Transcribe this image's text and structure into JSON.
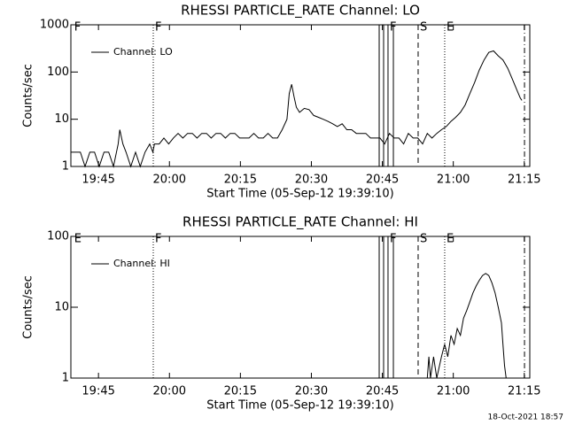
{
  "chart_data": [
    {
      "type": "line",
      "title": "RHESSI PARTICLE_RATE Channel: LO",
      "xlabel": "Start Time (05-Sep-12 19:39:10)",
      "ylabel": "Counts/sec",
      "log_y": true,
      "legend": "upper left",
      "xlim": [
        0,
        5820
      ],
      "ylim": [
        1,
        1000
      ],
      "xticks": [
        {
          "value": 350,
          "label": "19:45"
        },
        {
          "value": 1250,
          "label": "20:00"
        },
        {
          "value": 2150,
          "label": "20:15"
        },
        {
          "value": 3050,
          "label": "20:30"
        },
        {
          "value": 3950,
          "label": "20:45"
        },
        {
          "value": 4850,
          "label": "21:00"
        },
        {
          "value": 5750,
          "label": "21:15"
        }
      ],
      "yticks": [
        1,
        10,
        100,
        1000
      ],
      "vlines": [
        {
          "x": 1045,
          "style": "dotted"
        },
        {
          "x": 3910,
          "style": "solid"
        },
        {
          "x": 3966,
          "style": "solid"
        },
        {
          "x": 4022,
          "style": "solid"
        },
        {
          "x": 4090,
          "style": "solid"
        },
        {
          "x": 4404,
          "style": "dashed"
        },
        {
          "x": 4741,
          "style": "dotted"
        },
        {
          "x": 5753,
          "style": "dashdot"
        }
      ],
      "vline_labels": [
        {
          "x": 20,
          "label": "F"
        },
        {
          "x": 1045,
          "label": "F"
        },
        {
          "x": 4022,
          "label": "F"
        },
        {
          "x": 4404,
          "label": "S"
        },
        {
          "x": 4741,
          "label": "E"
        }
      ],
      "series": [
        {
          "name": "Channel: LO",
          "color": "#000000",
          "x": [
            0,
            60,
            120,
            180,
            240,
            300,
            360,
            420,
            480,
            540,
            600,
            620,
            660,
            700,
            760,
            820,
            880,
            940,
            1000,
            1040,
            1060,
            1120,
            1180,
            1240,
            1300,
            1360,
            1420,
            1480,
            1540,
            1600,
            1660,
            1720,
            1780,
            1840,
            1900,
            1960,
            2020,
            2080,
            2140,
            2200,
            2260,
            2320,
            2380,
            2440,
            2500,
            2560,
            2620,
            2680,
            2740,
            2770,
            2800,
            2830,
            2860,
            2900,
            2960,
            3020,
            3080,
            3140,
            3200,
            3260,
            3320,
            3380,
            3440,
            3500,
            3560,
            3620,
            3680,
            3740,
            3800,
            3860,
            3920,
            3980,
            4040,
            4100,
            4160,
            4220,
            4280,
            4340,
            4400,
            4460,
            4520,
            4580,
            4640,
            4700,
            4760,
            4820,
            4880,
            4940,
            5000,
            5060,
            5120,
            5180,
            5240,
            5300,
            5360,
            5420,
            5480,
            5540,
            5600,
            5660,
            5700,
            5720
          ],
          "values": [
            2,
            2,
            2,
            1,
            2,
            2,
            1,
            2,
            2,
            1,
            3,
            6,
            3,
            2,
            1,
            2,
            1,
            2,
            3,
            2,
            3,
            3,
            4,
            3,
            4,
            5,
            4,
            5,
            5,
            4,
            5,
            5,
            4,
            5,
            5,
            4,
            5,
            5,
            4,
            4,
            4,
            5,
            4,
            4,
            5,
            4,
            4,
            6,
            10,
            35,
            55,
            30,
            18,
            14,
            17,
            16,
            12,
            11,
            10,
            9,
            8,
            7,
            8,
            6,
            6,
            5,
            5,
            5,
            4,
            4,
            4,
            3,
            5,
            4,
            4,
            3,
            5,
            4,
            4,
            3,
            5,
            4,
            5,
            6,
            7,
            9,
            11,
            14,
            20,
            35,
            60,
            110,
            180,
            260,
            280,
            220,
            180,
            120,
            70,
            40,
            28,
            25
          ]
        }
      ]
    },
    {
      "type": "line",
      "title": "RHESSI PARTICLE_RATE Channel: HI",
      "xlabel": "Start Time (05-Sep-12 19:39:10)",
      "ylabel": "Counts/sec",
      "log_y": true,
      "legend": "upper left",
      "xlim": [
        0,
        5820
      ],
      "ylim": [
        1,
        100
      ],
      "xticks": [
        {
          "value": 350,
          "label": "19:45"
        },
        {
          "value": 1250,
          "label": "20:00"
        },
        {
          "value": 2150,
          "label": "20:15"
        },
        {
          "value": 3050,
          "label": "20:30"
        },
        {
          "value": 3950,
          "label": "20:45"
        },
        {
          "value": 4850,
          "label": "21:00"
        },
        {
          "value": 5750,
          "label": "21:15"
        }
      ],
      "yticks": [
        1,
        10,
        100
      ],
      "vlines": [
        {
          "x": 1045,
          "style": "dotted"
        },
        {
          "x": 3910,
          "style": "solid"
        },
        {
          "x": 3966,
          "style": "solid"
        },
        {
          "x": 4022,
          "style": "solid"
        },
        {
          "x": 4090,
          "style": "solid"
        },
        {
          "x": 4404,
          "style": "dashed"
        },
        {
          "x": 4741,
          "style": "dotted"
        },
        {
          "x": 5753,
          "style": "dashdot"
        }
      ],
      "vline_labels": [
        {
          "x": 20,
          "label": "E"
        },
        {
          "x": 1045,
          "label": "F"
        },
        {
          "x": 4022,
          "label": "F"
        },
        {
          "x": 4404,
          "label": "S"
        },
        {
          "x": 4741,
          "label": "E"
        }
      ],
      "series": [
        {
          "name": "Channel: HI",
          "color": "#000000",
          "x": [
            4520,
            4540,
            4560,
            4600,
            4640,
            4700,
            4740,
            4780,
            4820,
            4860,
            4900,
            4940,
            4980,
            5020,
            5060,
            5100,
            5140,
            5180,
            5220,
            5260,
            5300,
            5340,
            5380,
            5420,
            5460,
            5480,
            5500,
            5520
          ],
          "values": [
            1,
            2,
            1,
            2,
            1,
            2,
            3,
            2,
            4,
            3,
            5,
            4,
            7,
            9,
            12,
            16,
            20,
            24,
            28,
            30,
            28,
            22,
            16,
            10,
            6,
            3,
            1.5,
            1
          ]
        }
      ]
    }
  ],
  "footer": "18-Oct-2021 18:57"
}
